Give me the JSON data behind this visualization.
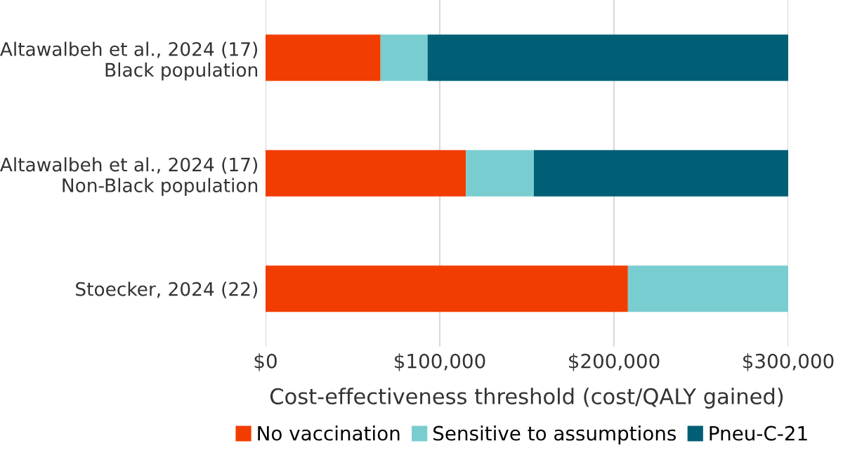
{
  "chart_data": {
    "type": "bar",
    "orientation": "horizontal",
    "stacked": true,
    "categories": [
      "Altawalbeh et al., 2024 (17)\nBlack population",
      "Altawalbeh et al., 2024 (17)\nNon-Black population",
      "Stoecker, 2024 (22)"
    ],
    "series": [
      {
        "name": "No vaccination",
        "color": "#f23d00",
        "values": [
          66000,
          115000,
          208000
        ]
      },
      {
        "name": "Sensitive to assumptions",
        "color": "#79cdd0",
        "values": [
          27000,
          39000,
          92000
        ]
      },
      {
        "name": "Pneu-C-21",
        "color": "#005e75",
        "values": [
          207000,
          146000,
          null
        ]
      }
    ],
    "xlabel": "Cost-effectiveness threshold (cost/QALY gained)",
    "xlim": [
      0,
      300000
    ],
    "xticks": [
      {
        "value": 0,
        "label": "$0"
      },
      {
        "value": 100000,
        "label": "$100,000"
      },
      {
        "value": 200000,
        "label": "$200,000"
      },
      {
        "value": 300000,
        "label": "$300,000"
      }
    ],
    "grid": "x",
    "legend": "bottom"
  }
}
